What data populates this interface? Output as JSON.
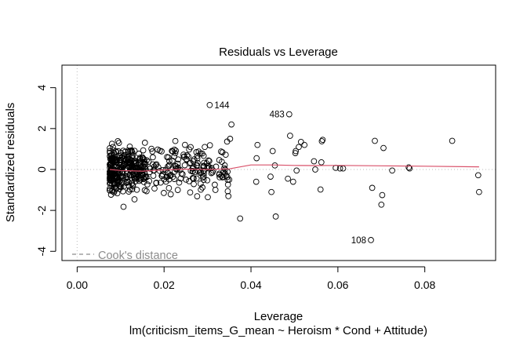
{
  "chart_data": {
    "type": "scatter",
    "title": "Residuals vs Leverage",
    "xlabel": "Leverage",
    "ylabel": "Standardized residuals",
    "subtitle": "lm(criticism_items_G_mean ~ Heroism * Cond + Attitude)",
    "xlim": [
      -0.0035,
      0.0963
    ],
    "ylim": [
      -4.45,
      5.1
    ],
    "x_ticks": [
      0.0,
      0.02,
      0.04,
      0.06,
      0.08
    ],
    "x_tick_labels": [
      "0.00",
      "0.02",
      "0.04",
      "0.06",
      "0.08"
    ],
    "y_ticks": [
      -4,
      -2,
      0,
      2,
      4
    ],
    "y_tick_labels": [
      "-4",
      "-2",
      "0",
      "2",
      "4"
    ],
    "reference_lines": {
      "x": 0,
      "y": 0,
      "style": "dotted",
      "color": "#c8c8c8"
    },
    "legend": {
      "label": "Cook's distance",
      "position": "bottom-left",
      "line_style": "dashed",
      "color": "#8c8c8c"
    },
    "point_color": "#000000",
    "smooth_color": "#d9516a",
    "annotations": [
      {
        "label": "144",
        "x": 0.0305,
        "y": 3.15
      },
      {
        "label": "483",
        "x": 0.0488,
        "y": 2.7
      },
      {
        "label": "108",
        "x": 0.0676,
        "y": -3.45
      }
    ],
    "notable_points": [
      {
        "x": 0.0305,
        "y": 3.15
      },
      {
        "x": 0.0488,
        "y": 2.7
      },
      {
        "x": 0.0676,
        "y": -3.45
      },
      {
        "x": 0.0863,
        "y": 1.4
      },
      {
        "x": 0.0925,
        "y": -1.1
      },
      {
        "x": 0.0923,
        "y": -0.28
      },
      {
        "x": 0.0765,
        "y": 0.05
      },
      {
        "x": 0.0763,
        "y": 0.1
      },
      {
        "x": 0.0725,
        "y": -0.05
      },
      {
        "x": 0.0705,
        "y": 1.05
      },
      {
        "x": 0.0702,
        "y": -1.25
      },
      {
        "x": 0.07,
        "y": -1.72
      },
      {
        "x": 0.0685,
        "y": 1.4
      },
      {
        "x": 0.0679,
        "y": -0.9
      },
      {
        "x": 0.0612,
        "y": 0.05
      },
      {
        "x": 0.0605,
        "y": 0.05
      },
      {
        "x": 0.0595,
        "y": 0.08
      },
      {
        "x": 0.0565,
        "y": 1.45
      },
      {
        "x": 0.0563,
        "y": 1.38
      },
      {
        "x": 0.056,
        "y": -0.98
      },
      {
        "x": 0.0562,
        "y": 0.35
      },
      {
        "x": 0.0548,
        "y": 0.0
      },
      {
        "x": 0.0545,
        "y": 0.4
      },
      {
        "x": 0.0523,
        "y": 1.2
      },
      {
        "x": 0.0515,
        "y": 1.35
      },
      {
        "x": 0.051,
        "y": 1.1
      },
      {
        "x": 0.0503,
        "y": 0.9
      },
      {
        "x": 0.0502,
        "y": 0.8
      },
      {
        "x": 0.049,
        "y": 1.65
      },
      {
        "x": 0.0497,
        "y": -0.6
      },
      {
        "x": 0.0485,
        "y": -0.45
      },
      {
        "x": 0.0505,
        "y": -0.05
      },
      {
        "x": 0.0455,
        "y": 0.2
      },
      {
        "x": 0.0457,
        "y": -2.3
      },
      {
        "x": 0.045,
        "y": 0.9
      },
      {
        "x": 0.0447,
        "y": -1.1
      },
      {
        "x": 0.0445,
        "y": -0.35
      },
      {
        "x": 0.0415,
        "y": 1.2
      },
      {
        "x": 0.0413,
        "y": 0.55
      },
      {
        "x": 0.0412,
        "y": -0.6
      },
      {
        "x": 0.0375,
        "y": -2.4
      },
      {
        "x": 0.0355,
        "y": 2.2
      },
      {
        "x": 0.0352,
        "y": 1.5
      },
      {
        "x": 0.035,
        "y": -0.5
      },
      {
        "x": 0.0348,
        "y": -1.3
      }
    ],
    "point_count_approx": 600
  }
}
